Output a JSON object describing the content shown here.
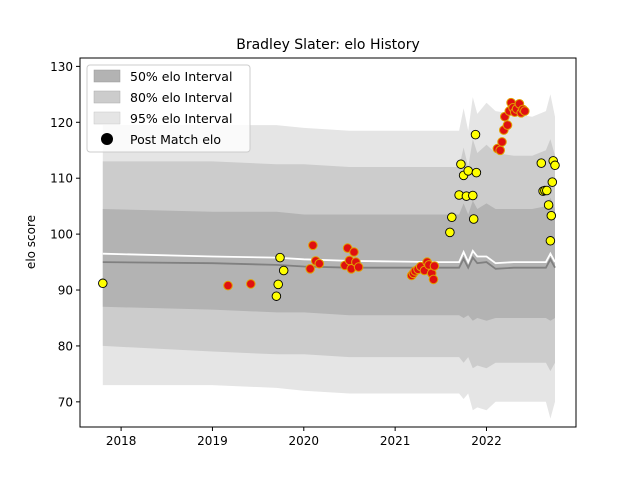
{
  "chart_data": {
    "type": "scatter",
    "title": "Bradley Slater: elo History",
    "ylabel": "elo score",
    "xlabel": "",
    "xlim": [
      2017.55,
      2022.98
    ],
    "ylim": [
      65.5,
      131.5
    ],
    "x_ticks": [
      2018,
      2019,
      2020,
      2021,
      2022
    ],
    "x_tick_labels": [
      "2018",
      "2019",
      "2020",
      "2021",
      "2022"
    ],
    "y_ticks": [
      70,
      80,
      90,
      100,
      110,
      120,
      130
    ],
    "y_tick_labels": [
      "70",
      "80",
      "90",
      "100",
      "110",
      "120",
      "130"
    ],
    "legend": {
      "position": "top-left",
      "entries": [
        "50% elo Interval",
        "80% elo Interval",
        "95% elo Interval",
        "Post Match elo"
      ]
    },
    "colors": {
      "band50": "#b3b3b3",
      "band80": "#cccccc",
      "band95": "#e5e5e5",
      "mean_line": "#ffffff",
      "median_line": "#808080",
      "point_fill": "#ffff00",
      "point_fill_alt": "#e01010",
      "point_edge_alt": "#e0a000"
    },
    "bands": {
      "x": [
        2017.8,
        2019.0,
        2019.7,
        2020.0,
        2020.5,
        2021.0,
        2021.5,
        2021.7,
        2021.75,
        2021.8,
        2021.85,
        2021.9,
        2022.0,
        2022.1,
        2022.3,
        2022.5,
        2022.65,
        2022.7,
        2022.75
      ],
      "lower95": [
        73,
        73,
        72.5,
        72,
        71.5,
        71.5,
        71.5,
        71.5,
        70.5,
        71.5,
        68.5,
        69,
        68.5,
        70,
        70,
        70,
        70,
        67,
        70
      ],
      "upper95": [
        119.5,
        119.5,
        119.5,
        119,
        118.5,
        118.5,
        118.5,
        118.5,
        122.5,
        118.5,
        124.5,
        121.5,
        123.5,
        122,
        121.5,
        121,
        122,
        125,
        121
      ],
      "lower80": [
        80,
        79,
        78.5,
        78.5,
        78,
        78,
        78,
        78,
        77,
        78,
        76,
        76.5,
        76,
        77,
        77,
        77,
        77,
        75.5,
        77
      ],
      "upper80": [
        113,
        113,
        112.5,
        112.5,
        112,
        112,
        112,
        112,
        115.5,
        112,
        117,
        114.5,
        116,
        114.5,
        114,
        114,
        115,
        117,
        114
      ],
      "lower50": [
        87,
        86.5,
        86,
        86,
        85.5,
        85.5,
        85.5,
        85.5,
        85,
        85.5,
        84.5,
        85,
        84.5,
        85,
        85,
        85,
        85,
        84.5,
        85
      ],
      "upper50": [
        104.5,
        104,
        104,
        103.5,
        103.5,
        103.5,
        103.5,
        103.5,
        105.5,
        103.5,
        106,
        104.5,
        105.5,
        104.5,
        104.5,
        104.5,
        105,
        106.5,
        104.5
      ],
      "mean": [
        96.5,
        96,
        95.8,
        95.5,
        95.2,
        95.1,
        95,
        95,
        96.8,
        95,
        97,
        96,
        96,
        94.8,
        95,
        95,
        95,
        96.5,
        95
      ],
      "median": [
        95,
        94.8,
        94.5,
        94.2,
        94,
        94,
        94,
        94,
        95.6,
        94,
        95.8,
        94.8,
        95,
        93.8,
        94,
        94,
        94,
        95.5,
        94
      ]
    },
    "series": [
      {
        "name": "Post Match elo",
        "points": [
          {
            "x": 2017.8,
            "y": 91.2,
            "style": "yellow"
          },
          {
            "x": 2019.17,
            "y": 90.8,
            "style": "red"
          },
          {
            "x": 2019.42,
            "y": 91.1,
            "style": "red"
          },
          {
            "x": 2019.7,
            "y": 88.9,
            "style": "yellow"
          },
          {
            "x": 2019.72,
            "y": 91.0,
            "style": "yellow"
          },
          {
            "x": 2019.74,
            "y": 95.8,
            "style": "yellow"
          },
          {
            "x": 2019.78,
            "y": 93.5,
            "style": "yellow"
          },
          {
            "x": 2020.07,
            "y": 93.8,
            "style": "red"
          },
          {
            "x": 2020.1,
            "y": 98.0,
            "style": "red"
          },
          {
            "x": 2020.13,
            "y": 95.2,
            "style": "red"
          },
          {
            "x": 2020.17,
            "y": 94.7,
            "style": "red"
          },
          {
            "x": 2020.45,
            "y": 94.4,
            "style": "red"
          },
          {
            "x": 2020.48,
            "y": 97.5,
            "style": "red"
          },
          {
            "x": 2020.5,
            "y": 95.3,
            "style": "red"
          },
          {
            "x": 2020.52,
            "y": 93.8,
            "style": "red"
          },
          {
            "x": 2020.55,
            "y": 96.8,
            "style": "red"
          },
          {
            "x": 2020.57,
            "y": 95.0,
            "style": "red"
          },
          {
            "x": 2020.6,
            "y": 94.1,
            "style": "red"
          },
          {
            "x": 2021.18,
            "y": 92.6,
            "style": "red"
          },
          {
            "x": 2021.2,
            "y": 93.0,
            "style": "red"
          },
          {
            "x": 2021.22,
            "y": 93.4,
            "style": "red"
          },
          {
            "x": 2021.25,
            "y": 93.7,
            "style": "red"
          },
          {
            "x": 2021.28,
            "y": 94.2,
            "style": "red"
          },
          {
            "x": 2021.32,
            "y": 93.5,
            "style": "red"
          },
          {
            "x": 2021.35,
            "y": 95.0,
            "style": "red"
          },
          {
            "x": 2021.37,
            "y": 94.5,
            "style": "red"
          },
          {
            "x": 2021.4,
            "y": 93.0,
            "style": "red"
          },
          {
            "x": 2021.42,
            "y": 91.9,
            "style": "red"
          },
          {
            "x": 2021.43,
            "y": 94.3,
            "style": "red"
          },
          {
            "x": 2021.6,
            "y": 100.3,
            "style": "yellow"
          },
          {
            "x": 2021.62,
            "y": 103.0,
            "style": "yellow"
          },
          {
            "x": 2021.7,
            "y": 107.0,
            "style": "yellow"
          },
          {
            "x": 2021.72,
            "y": 112.5,
            "style": "yellow"
          },
          {
            "x": 2021.75,
            "y": 110.5,
            "style": "yellow"
          },
          {
            "x": 2021.78,
            "y": 106.8,
            "style": "yellow"
          },
          {
            "x": 2021.8,
            "y": 111.3,
            "style": "yellow"
          },
          {
            "x": 2021.85,
            "y": 106.9,
            "style": "yellow"
          },
          {
            "x": 2021.86,
            "y": 102.7,
            "style": "yellow"
          },
          {
            "x": 2021.88,
            "y": 117.8,
            "style": "yellow"
          },
          {
            "x": 2021.89,
            "y": 111.0,
            "style": "yellow"
          },
          {
            "x": 2022.12,
            "y": 115.3,
            "style": "red"
          },
          {
            "x": 2022.15,
            "y": 115.0,
            "style": "red"
          },
          {
            "x": 2022.17,
            "y": 116.5,
            "style": "red"
          },
          {
            "x": 2022.19,
            "y": 118.6,
            "style": "red"
          },
          {
            "x": 2022.2,
            "y": 121.0,
            "style": "red"
          },
          {
            "x": 2022.23,
            "y": 119.5,
            "style": "red"
          },
          {
            "x": 2022.25,
            "y": 122.0,
            "style": "red"
          },
          {
            "x": 2022.27,
            "y": 123.5,
            "style": "red"
          },
          {
            "x": 2022.29,
            "y": 122.6,
            "style": "red"
          },
          {
            "x": 2022.31,
            "y": 121.8,
            "style": "red"
          },
          {
            "x": 2022.33,
            "y": 122.4,
            "style": "red"
          },
          {
            "x": 2022.36,
            "y": 123.3,
            "style": "red"
          },
          {
            "x": 2022.38,
            "y": 121.7,
            "style": "red"
          },
          {
            "x": 2022.4,
            "y": 122.3,
            "style": "red"
          },
          {
            "x": 2022.42,
            "y": 122.0,
            "style": "red"
          },
          {
            "x": 2022.6,
            "y": 112.7,
            "style": "yellow"
          },
          {
            "x": 2022.62,
            "y": 107.7,
            "style": "yellow"
          },
          {
            "x": 2022.64,
            "y": 107.8,
            "style": "yellow"
          },
          {
            "x": 2022.66,
            "y": 107.8,
            "style": "yellow"
          },
          {
            "x": 2022.68,
            "y": 105.2,
            "style": "yellow"
          },
          {
            "x": 2022.7,
            "y": 98.8,
            "style": "yellow"
          },
          {
            "x": 2022.71,
            "y": 103.3,
            "style": "yellow"
          },
          {
            "x": 2022.72,
            "y": 109.3,
            "style": "yellow"
          },
          {
            "x": 2022.73,
            "y": 113.1,
            "style": "yellow"
          },
          {
            "x": 2022.75,
            "y": 112.3,
            "style": "yellow"
          }
        ]
      }
    ]
  }
}
